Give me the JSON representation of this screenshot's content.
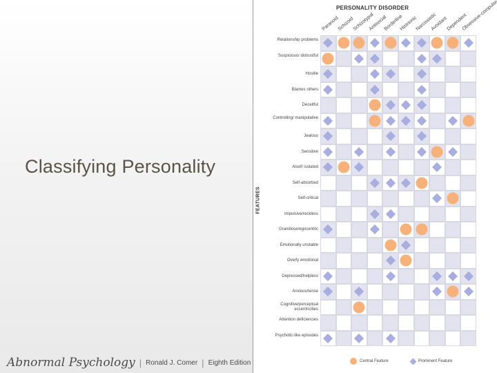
{
  "slide": {
    "title": "Classifying Personality",
    "footer": {
      "book": "Abnormal Psychology",
      "author": "Ronald J. Comer",
      "edition": "Eighth Edition"
    }
  },
  "figure": {
    "title": "PERSONALITY DISORDER",
    "axis_label": "FEATURES",
    "legend": {
      "central": "Central Feature",
      "prominent": "Prominent Feature"
    },
    "colors": {
      "central": "#f6b27a",
      "prominent": "#a9aee0",
      "band": "#e3e3f0"
    },
    "disorders": [
      "Paranoid",
      "Schizoid",
      "Schizotypal",
      "Antisocial",
      "Borderline",
      "Histrionic",
      "Narcissistic",
      "Avoidant",
      "Dependent",
      "Obsessive-compulsive"
    ],
    "features": [
      {
        "label": "Relationship problems",
        "cells": [
          "P",
          "C",
          "C",
          "P",
          "C",
          "P",
          "P",
          "C",
          "C",
          "P"
        ]
      },
      {
        "label": "Suspicious/ distrustful",
        "cells": [
          "C",
          "",
          "P",
          "P",
          "",
          "",
          "P",
          "P",
          "",
          ""
        ]
      },
      {
        "label": "Hostile",
        "cells": [
          "P",
          "",
          "",
          "P",
          "P",
          "",
          "P",
          "",
          "",
          ""
        ]
      },
      {
        "label": "Blames others",
        "cells": [
          "P",
          "",
          "",
          "P",
          "",
          "",
          "P",
          "",
          "",
          ""
        ]
      },
      {
        "label": "Deceitful",
        "cells": [
          "",
          "",
          "",
          "C",
          "P",
          "P",
          "P",
          "",
          "",
          ""
        ]
      },
      {
        "label": "Controlling/ manipulative",
        "cells": [
          "P",
          "",
          "",
          "C",
          "P",
          "P",
          "P",
          "",
          "P",
          "C"
        ]
      },
      {
        "label": "Jealous",
        "cells": [
          "P",
          "",
          "",
          "",
          "P",
          "",
          "P",
          "",
          "",
          ""
        ]
      },
      {
        "label": "Sensitive",
        "cells": [
          "P",
          "",
          "P",
          "",
          "P",
          "",
          "P",
          "C",
          "P",
          ""
        ]
      },
      {
        "label": "Aloof/ isolated",
        "cells": [
          "P",
          "C",
          "P",
          "",
          "",
          "",
          "",
          "P",
          "",
          ""
        ]
      },
      {
        "label": "Self-absorbed",
        "cells": [
          "",
          "",
          "",
          "P",
          "P",
          "P",
          "C",
          "",
          "",
          ""
        ]
      },
      {
        "label": "Self-critical",
        "cells": [
          "",
          "",
          "",
          "",
          "",
          "",
          "",
          "P",
          "C",
          ""
        ]
      },
      {
        "label": "Impulsive/reckless",
        "cells": [
          "",
          "",
          "",
          "P",
          "P",
          "",
          "",
          "",
          "",
          ""
        ]
      },
      {
        "label": "Grandiose/egocentric",
        "cells": [
          "P",
          "",
          "",
          "P",
          "",
          "C",
          "C",
          "",
          "",
          ""
        ]
      },
      {
        "label": "Emotionally unstable",
        "cells": [
          "",
          "",
          "",
          "",
          "C",
          "P",
          "",
          "",
          "",
          ""
        ]
      },
      {
        "label": "Overly emotional",
        "cells": [
          "",
          "",
          "",
          "",
          "P",
          "C",
          "",
          "",
          "",
          ""
        ]
      },
      {
        "label": "Depressed/helpless",
        "cells": [
          "P",
          "",
          "",
          "",
          "P",
          "",
          "",
          "P",
          "P",
          "P"
        ]
      },
      {
        "label": "Anxious/tense",
        "cells": [
          "P",
          "",
          "P",
          "",
          "",
          "",
          "",
          "P",
          "C",
          "P"
        ]
      },
      {
        "label": "Cognitive/perceptual eccentricities",
        "cells": [
          "",
          "",
          "C",
          "",
          "",
          "",
          "",
          "",
          "",
          ""
        ]
      },
      {
        "label": "Attention deficiencies",
        "cells": [
          "",
          "",
          "",
          "",
          "",
          "",
          "",
          "",
          "",
          ""
        ]
      },
      {
        "label": "Psychotic-like episodes",
        "cells": [
          "P",
          "",
          "P",
          "",
          "P",
          "",
          "",
          "",
          "",
          ""
        ]
      }
    ]
  }
}
